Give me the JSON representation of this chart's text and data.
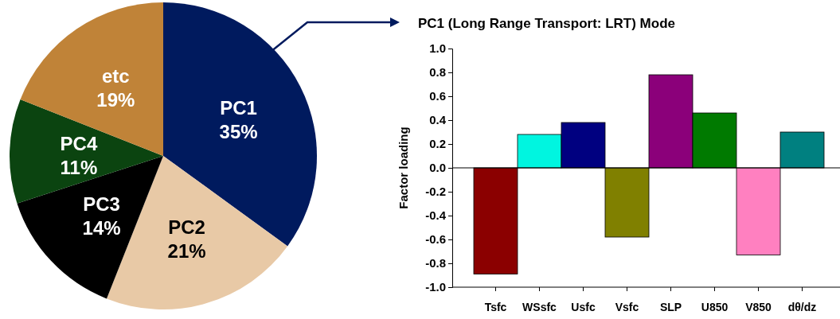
{
  "chart_data": [
    {
      "type": "pie",
      "categories": [
        "PC1",
        "PC2",
        "PC3",
        "PC4",
        "etc"
      ],
      "values": [
        35,
        21,
        14,
        11,
        19
      ],
      "colors": [
        "#001a5e",
        "#e8c9a6",
        "#000000",
        "#0b4410",
        "#c08338"
      ],
      "value_labels": [
        "35%",
        "21%",
        "14%",
        "11%",
        "19%"
      ]
    },
    {
      "type": "bar",
      "title": "PC1 (Long Range Transport: LRT) Mode",
      "ylabel": "Factor loading",
      "categories": [
        "Tsfc",
        "WSsfc",
        "Usfc",
        "Vsfc",
        "SLP",
        "U850",
        "V850",
        "dθ/dz"
      ],
      "values": [
        -0.89,
        0.28,
        0.38,
        -0.58,
        0.78,
        0.46,
        -0.73,
        0.3
      ],
      "colors": [
        "#8b0000",
        "#00f5e0",
        "#000080",
        "#808000",
        "#8b007a",
        "#007a00",
        "#ff80c0",
        "#008080"
      ],
      "ylim": [
        -1.0,
        1.0
      ],
      "yticks": [
        {
          "value": 1,
          "label": "1.0"
        },
        0.8,
        0.6,
        0.4,
        0.2,
        {
          "value": 0,
          "label": "0.0"
        },
        -0.2,
        -0.4,
        -0.6,
        -0.8,
        {
          "value": -1,
          "label": "-1.0"
        }
      ],
      "ref_lines": [
        {
          "axis": "y",
          "value": 0
        }
      ],
      "grid": false
    }
  ]
}
